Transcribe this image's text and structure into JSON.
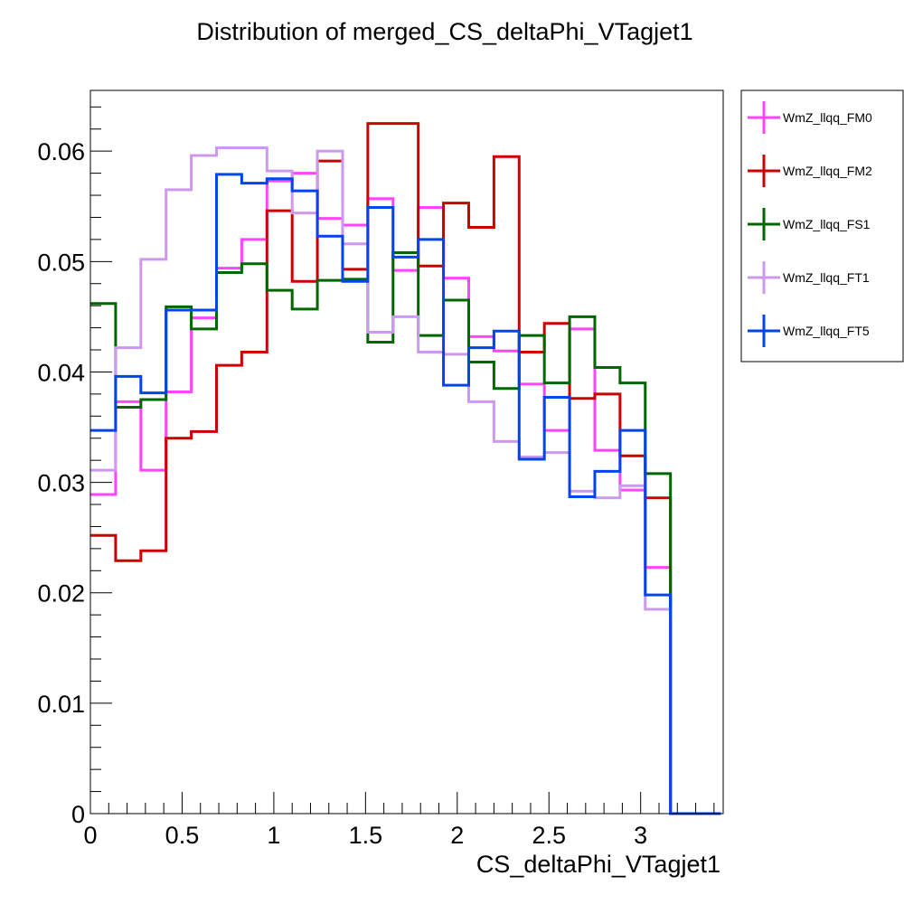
{
  "chart_data": {
    "type": "line",
    "title": "Distribution of merged_CS_deltaPhi_VTagjet1",
    "xlabel": "CS_deltaPhi_VTagjet1",
    "ylabel": "",
    "xlim": [
      0,
      3.45
    ],
    "ylim": [
      0,
      0.0655
    ],
    "grid": false,
    "legend_position": "right",
    "x_ticks": [
      {
        "value": 0,
        "label": "0"
      },
      {
        "value": 0.5,
        "label": "0.5"
      },
      {
        "value": 1,
        "label": "1"
      },
      {
        "value": 1.5,
        "label": "1.5"
      },
      {
        "value": 2,
        "label": "2"
      },
      {
        "value": 2.5,
        "label": "2.5"
      },
      {
        "value": 3,
        "label": "3"
      }
    ],
    "y_ticks": [
      {
        "value": 0,
        "label": "0"
      },
      {
        "value": 0.01,
        "label": "0.01"
      },
      {
        "value": 0.02,
        "label": "0.02"
      },
      {
        "value": 0.03,
        "label": "0.03"
      },
      {
        "value": 0.04,
        "label": "0.04"
      },
      {
        "value": 0.05,
        "label": "0.05"
      },
      {
        "value": 0.06,
        "label": "0.06"
      }
    ],
    "bin_width": 0.1375,
    "series": [
      {
        "name": "WmZ_llqq_FM0",
        "color": "#ff44ff",
        "values": [
          0.0289,
          0.0373,
          0.0311,
          0.0382,
          0.0449,
          0.0494,
          0.052,
          0.0573,
          0.058,
          0.0539,
          0.0533,
          0.0557,
          0.0492,
          0.0549,
          0.0485,
          0.0432,
          0.0419,
          0.0389,
          0.0347,
          0.0439,
          0.0329,
          0.0293,
          0.0223,
          0,
          0
        ]
      },
      {
        "name": "WmZ_llqq_FM2",
        "color": "#cc0000",
        "values": [
          0.0252,
          0.0229,
          0.0238,
          0.034,
          0.0346,
          0.0406,
          0.0418,
          0.0546,
          0.0482,
          0.0591,
          0.0493,
          0.0625,
          0.0625,
          0.0496,
          0.0553,
          0.0531,
          0.0595,
          0.0418,
          0.0444,
          0.0376,
          0.038,
          0.0324,
          0.0286,
          0,
          0
        ]
      },
      {
        "name": "WmZ_llqq_FS1",
        "color": "#006600",
        "values": [
          0.0462,
          0.0368,
          0.0375,
          0.0459,
          0.0439,
          0.049,
          0.0498,
          0.0474,
          0.0457,
          0.0483,
          0.0484,
          0.0427,
          0.0508,
          0.0433,
          0.0465,
          0.0409,
          0.0385,
          0.0433,
          0.039,
          0.045,
          0.0404,
          0.039,
          0.0308,
          0,
          0
        ]
      },
      {
        "name": "WmZ_llqq_FT1",
        "color": "#cc99ee",
        "values": [
          0.0311,
          0.0422,
          0.0502,
          0.0565,
          0.0596,
          0.0603,
          0.0603,
          0.0582,
          0.0544,
          0.06,
          0.0516,
          0.0436,
          0.045,
          0.0418,
          0.0416,
          0.0373,
          0.0337,
          0.0323,
          0.0327,
          0.0292,
          0.0286,
          0.0297,
          0.0185,
          0,
          0
        ]
      },
      {
        "name": "WmZ_llqq_FT5",
        "color": "#0044ee",
        "values": [
          0.0347,
          0.0396,
          0.0381,
          0.0456,
          0.0456,
          0.0579,
          0.0571,
          0.0575,
          0.0564,
          0.0523,
          0.0482,
          0.0549,
          0.0504,
          0.052,
          0.0388,
          0.0422,
          0.0437,
          0.0321,
          0.0377,
          0.0287,
          0.031,
          0.0347,
          0.0198,
          0,
          0
        ]
      }
    ]
  }
}
